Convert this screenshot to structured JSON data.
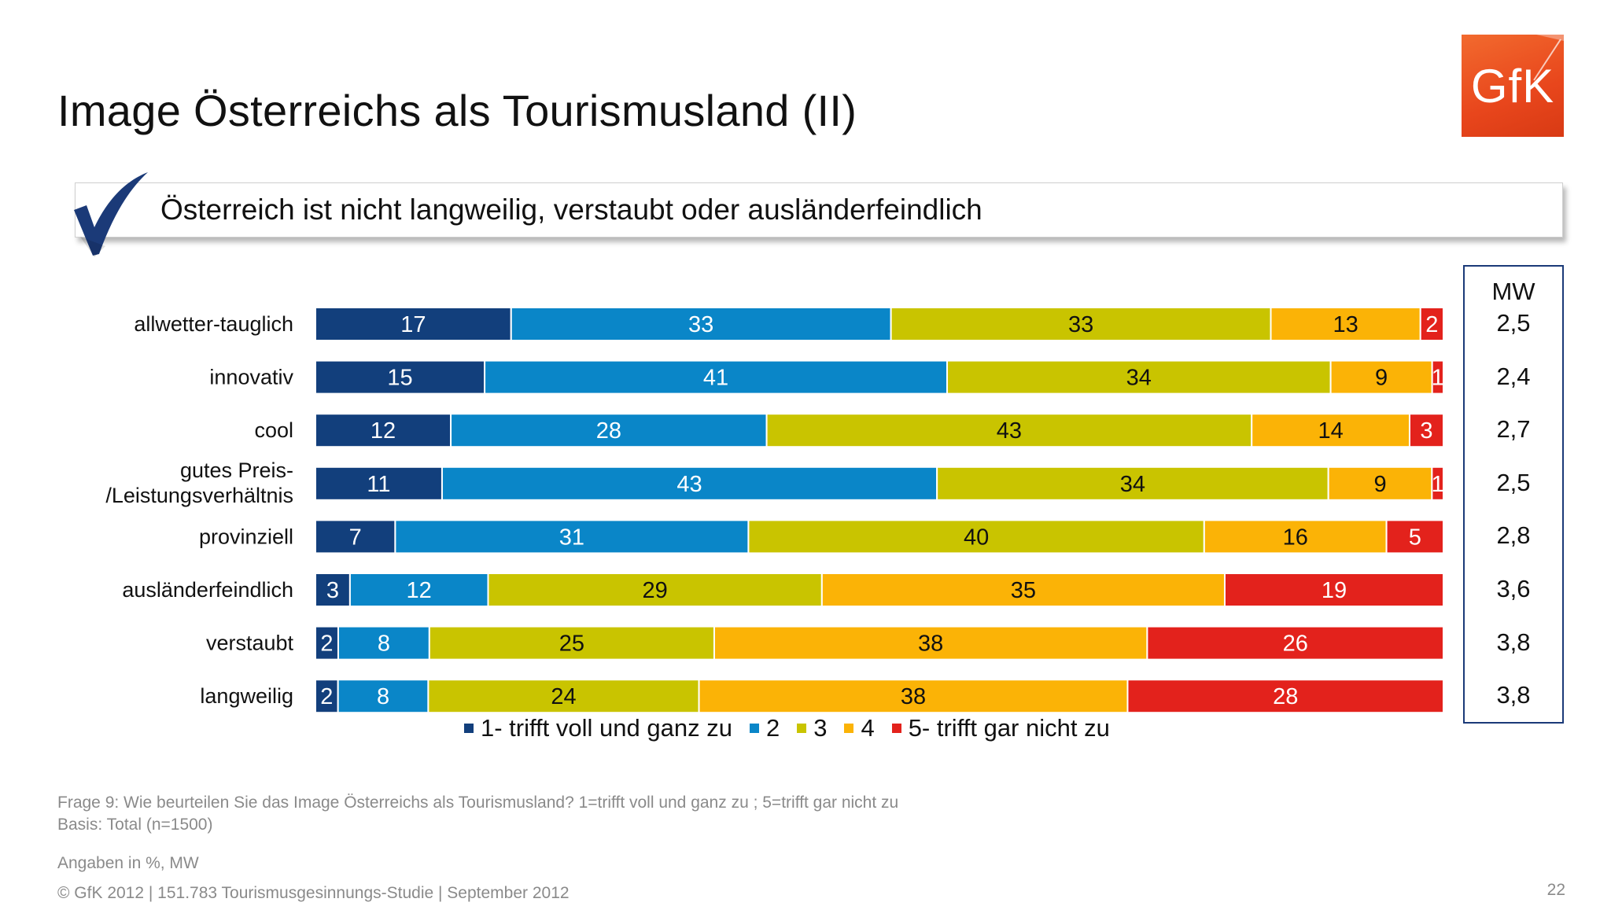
{
  "title": "Image Österreichs als Tourismusland (II)",
  "logo_text": "GfK",
  "banner_text": "Österreich ist nicht langweilig, verstaubt oder ausländerfeindlich",
  "chart_data": {
    "type": "bar",
    "orientation": "horizontal",
    "stacked": true,
    "categories": [
      "allwetter-tauglich",
      "innovativ",
      "cool",
      "gutes Preis-\n/Leistungsverhältnis",
      "provinziell",
      "ausländerfeindlich",
      "verstaubt",
      "langweilig"
    ],
    "series": [
      {
        "name": "1- trifft voll und ganz zu",
        "color": "#123f7c",
        "values": [
          17,
          15,
          12,
          11,
          7,
          3,
          2,
          2
        ]
      },
      {
        "name": "2",
        "color": "#0a86c8",
        "values": [
          33,
          41,
          28,
          43,
          31,
          12,
          8,
          8
        ]
      },
      {
        "name": "3",
        "color": "#c9c400",
        "values": [
          33,
          34,
          43,
          34,
          40,
          29,
          25,
          24
        ]
      },
      {
        "name": "4",
        "color": "#fbb306",
        "values": [
          13,
          9,
          14,
          9,
          16,
          35,
          38,
          38
        ]
      },
      {
        "name": "5- trifft gar nicht zu",
        "color": "#e3221c",
        "values": [
          2,
          1,
          3,
          1,
          5,
          19,
          26,
          28
        ]
      }
    ],
    "legend_position": "bottom",
    "grid": false
  },
  "mw": {
    "header": "MW",
    "values": [
      "2,5",
      "2,4",
      "2,7",
      "2,5",
      "2,8",
      "3,6",
      "3,8",
      "3,8"
    ]
  },
  "footer": {
    "question": "Frage 9: Wie beurteilen Sie das Image Österreichs als Tourismusland? 1=trifft voll und ganz zu ; 5=trifft gar nicht zu",
    "basis": "Basis: Total (n=1500)",
    "units": "Angaben in %, MW",
    "copyright": "© GfK 2012 | 151.783 Tourismusgesinnungs-Studie | September 2012",
    "page": "22"
  }
}
